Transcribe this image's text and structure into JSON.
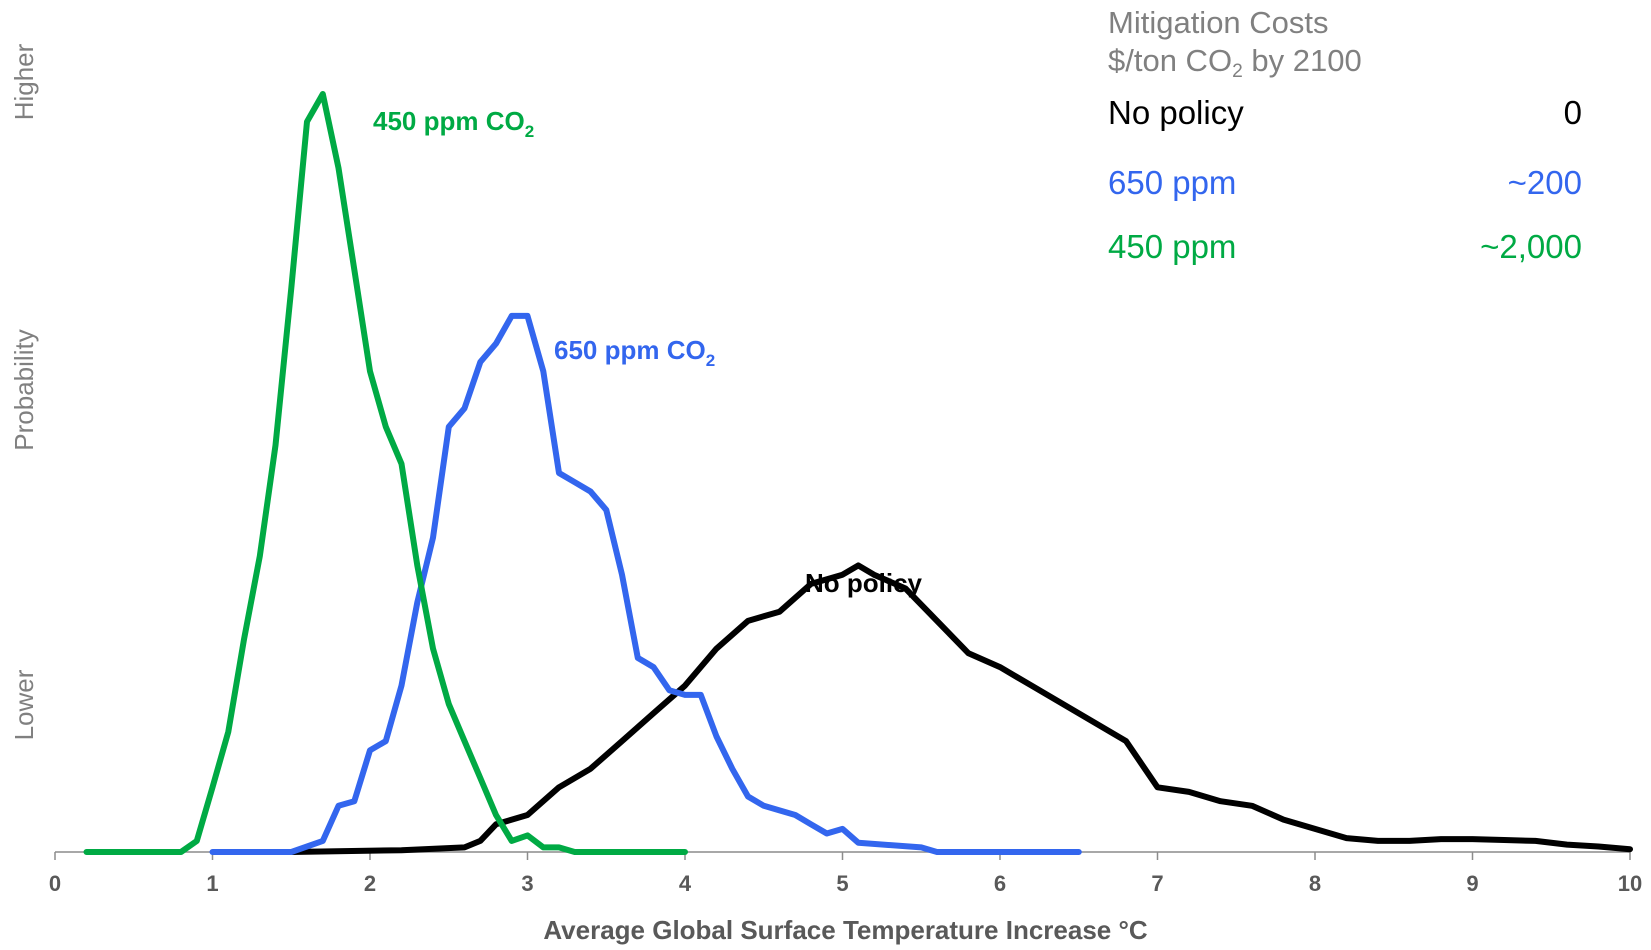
{
  "chart_data": {
    "type": "line",
    "title": "",
    "xlabel": "Average Global Surface Temperature Increase °C",
    "ylabel": "Probability",
    "ylabel_high": "Higher",
    "ylabel_low": "Lower",
    "xlim": [
      0,
      10
    ],
    "ylim": [
      0,
      1
    ],
    "xticks": [
      "0",
      "1",
      "2",
      "3",
      "4",
      "5",
      "6",
      "7",
      "8",
      "9",
      "10"
    ],
    "grid": false,
    "series": [
      {
        "name": "No policy",
        "color": "#000000",
        "points": [
          [
            1.5,
            0
          ],
          [
            2.2,
            0.002
          ],
          [
            2.6,
            0.005
          ],
          [
            2.7,
            0.012
          ],
          [
            2.8,
            0.03
          ],
          [
            3.0,
            0.04
          ],
          [
            3.2,
            0.07
          ],
          [
            3.4,
            0.09
          ],
          [
            3.6,
            0.12
          ],
          [
            3.8,
            0.15
          ],
          [
            4.0,
            0.18
          ],
          [
            4.2,
            0.22
          ],
          [
            4.4,
            0.25
          ],
          [
            4.6,
            0.26
          ],
          [
            4.8,
            0.29
          ],
          [
            5.0,
            0.3
          ],
          [
            5.1,
            0.31
          ],
          [
            5.2,
            0.3
          ],
          [
            5.4,
            0.285
          ],
          [
            5.6,
            0.25
          ],
          [
            5.8,
            0.215
          ],
          [
            6.0,
            0.2
          ],
          [
            6.2,
            0.18
          ],
          [
            6.4,
            0.16
          ],
          [
            6.6,
            0.14
          ],
          [
            6.8,
            0.12
          ],
          [
            7.0,
            0.07
          ],
          [
            7.2,
            0.065
          ],
          [
            7.4,
            0.055
          ],
          [
            7.6,
            0.05
          ],
          [
            7.8,
            0.035
          ],
          [
            8.0,
            0.025
          ],
          [
            8.2,
            0.015
          ],
          [
            8.4,
            0.012
          ],
          [
            8.6,
            0.012
          ],
          [
            8.8,
            0.014
          ],
          [
            9.0,
            0.014
          ],
          [
            9.2,
            0.013
          ],
          [
            9.4,
            0.012
          ],
          [
            9.6,
            0.008
          ],
          [
            9.8,
            0.006
          ],
          [
            10.0,
            0.003
          ]
        ]
      },
      {
        "name": "650 ppm CO2",
        "color": "#3366ee",
        "points": [
          [
            1.0,
            0
          ],
          [
            1.5,
            0
          ],
          [
            1.7,
            0.012
          ],
          [
            1.8,
            0.05
          ],
          [
            1.9,
            0.055
          ],
          [
            2.0,
            0.11
          ],
          [
            2.1,
            0.12
          ],
          [
            2.2,
            0.18
          ],
          [
            2.3,
            0.27
          ],
          [
            2.4,
            0.34
          ],
          [
            2.5,
            0.46
          ],
          [
            2.6,
            0.48
          ],
          [
            2.7,
            0.53
          ],
          [
            2.8,
            0.55
          ],
          [
            2.9,
            0.58
          ],
          [
            3.0,
            0.58
          ],
          [
            3.1,
            0.52
          ],
          [
            3.2,
            0.41
          ],
          [
            3.3,
            0.4
          ],
          [
            3.4,
            0.39
          ],
          [
            3.5,
            0.37
          ],
          [
            3.6,
            0.3
          ],
          [
            3.7,
            0.21
          ],
          [
            3.8,
            0.2
          ],
          [
            3.9,
            0.175
          ],
          [
            4.0,
            0.17
          ],
          [
            4.1,
            0.17
          ],
          [
            4.2,
            0.125
          ],
          [
            4.3,
            0.09
          ],
          [
            4.4,
            0.06
          ],
          [
            4.5,
            0.05
          ],
          [
            4.6,
            0.045
          ],
          [
            4.7,
            0.04
          ],
          [
            4.8,
            0.03
          ],
          [
            4.9,
            0.02
          ],
          [
            5.0,
            0.025
          ],
          [
            5.1,
            0.01
          ],
          [
            5.5,
            0.005
          ],
          [
            5.6,
            0
          ],
          [
            6.5,
            0
          ]
        ]
      },
      {
        "name": "450 ppm CO2",
        "color": "#00aa44",
        "points": [
          [
            0.2,
            0
          ],
          [
            0.8,
            0
          ],
          [
            0.9,
            0.012
          ],
          [
            1.0,
            0.07
          ],
          [
            1.1,
            0.13
          ],
          [
            1.2,
            0.23
          ],
          [
            1.3,
            0.32
          ],
          [
            1.4,
            0.44
          ],
          [
            1.5,
            0.61
          ],
          [
            1.6,
            0.79
          ],
          [
            1.7,
            0.82
          ],
          [
            1.8,
            0.74
          ],
          [
            1.9,
            0.63
          ],
          [
            2.0,
            0.52
          ],
          [
            2.1,
            0.46
          ],
          [
            2.2,
            0.42
          ],
          [
            2.3,
            0.31
          ],
          [
            2.4,
            0.22
          ],
          [
            2.5,
            0.16
          ],
          [
            2.6,
            0.12
          ],
          [
            2.7,
            0.08
          ],
          [
            2.8,
            0.04
          ],
          [
            2.9,
            0.012
          ],
          [
            3.0,
            0.018
          ],
          [
            3.1,
            0.005
          ],
          [
            3.2,
            0.005
          ],
          [
            3.3,
            0
          ],
          [
            4.0,
            0
          ]
        ]
      }
    ],
    "annotations": [
      {
        "text": "450 ppm CO",
        "sub": "2",
        "color": "#00aa44"
      },
      {
        "text": "650 ppm CO",
        "sub": "2",
        "color": "#3366ee"
      },
      {
        "text": "No policy",
        "sub": "",
        "color": "#000000"
      }
    ]
  },
  "costs": {
    "title_line1": "Mitigation Costs",
    "title_line2_pre": "$/ton CO",
    "title_line2_sub": "2",
    "title_line2_post": " by 2100",
    "rows": [
      {
        "name": "No policy",
        "value": "0",
        "color": "#000000"
      },
      {
        "name": "650 ppm",
        "value": "~200",
        "color": "#3366ee"
      },
      {
        "name": "450 ppm",
        "value": "~2,000",
        "color": "#00aa44"
      }
    ]
  }
}
